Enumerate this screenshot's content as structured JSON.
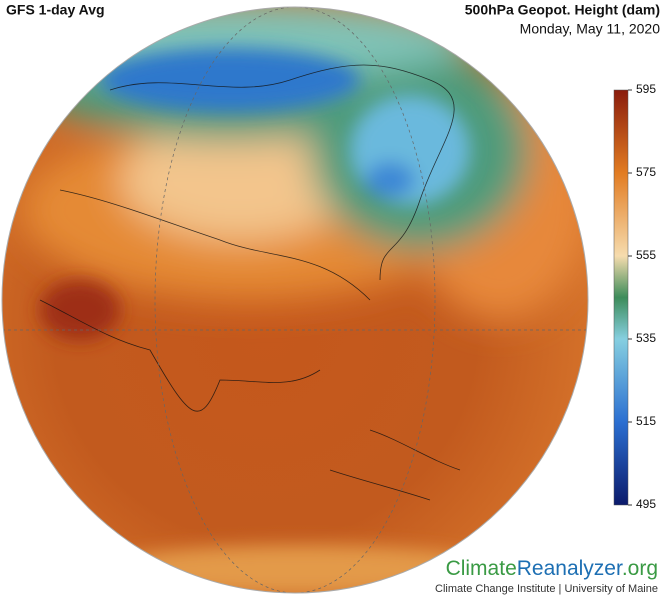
{
  "header": {
    "title": "GFS 1-day Avg",
    "variable": "500hPa Geopot. Height (dam)",
    "date": "Monday, May 11, 2020"
  },
  "colorbar": {
    "range": [
      495,
      595
    ],
    "ticks": [
      595,
      575,
      555,
      535,
      515,
      495
    ]
  },
  "logo": {
    "parts": [
      "Climate",
      "Reanalyzer",
      ".org"
    ],
    "tagline": "Climate Change Institute | University of Maine"
  }
}
